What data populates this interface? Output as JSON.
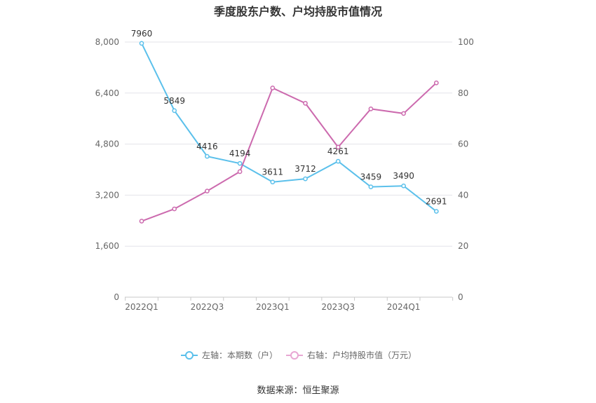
{
  "title": "季度股东户数、户均持股市值情况",
  "source": "数据来源：恒生聚源",
  "chart_data": {
    "type": "line",
    "title": "季度股东户数、户均持股市值情况",
    "categories": [
      "2022Q1",
      "2022Q2",
      "2022Q3",
      "2022Q4",
      "2023Q1",
      "2023Q2",
      "2023Q3",
      "2023Q4",
      "2024Q1",
      "2024Q2"
    ],
    "x_tick_labels": [
      "2022Q1",
      "2022Q3",
      "2023Q1",
      "2023Q3",
      "2024Q1"
    ],
    "y_left": {
      "ylim": [
        0,
        8000
      ],
      "ticks": [
        "0",
        "1,600",
        "3,200",
        "4,800",
        "6,400",
        "8,000"
      ]
    },
    "y_right": {
      "ylim": [
        0,
        100
      ],
      "ticks": [
        "0",
        "20",
        "40",
        "60",
        "80",
        "100"
      ]
    },
    "series": [
      {
        "name": "左轴：本期数（户）",
        "axis": "left",
        "color": "#5bc0eb",
        "values": [
          7960,
          5849,
          4416,
          4194,
          3611,
          3712,
          4261,
          3459,
          3490,
          2691
        ],
        "labels": [
          "7960",
          "5849",
          "4416",
          "4194",
          "3611",
          "3712",
          "4261",
          "3459",
          "3490",
          "2691"
        ]
      },
      {
        "name": "右轴：户均持股市值（万元）",
        "axis": "right",
        "color": "#cc6aae",
        "values": [
          29.8,
          34.6,
          41.6,
          49.2,
          82.0,
          76.0,
          58.8,
          73.8,
          72.0,
          84.0
        ]
      }
    ],
    "grid": true,
    "legend_position": "bottom"
  }
}
